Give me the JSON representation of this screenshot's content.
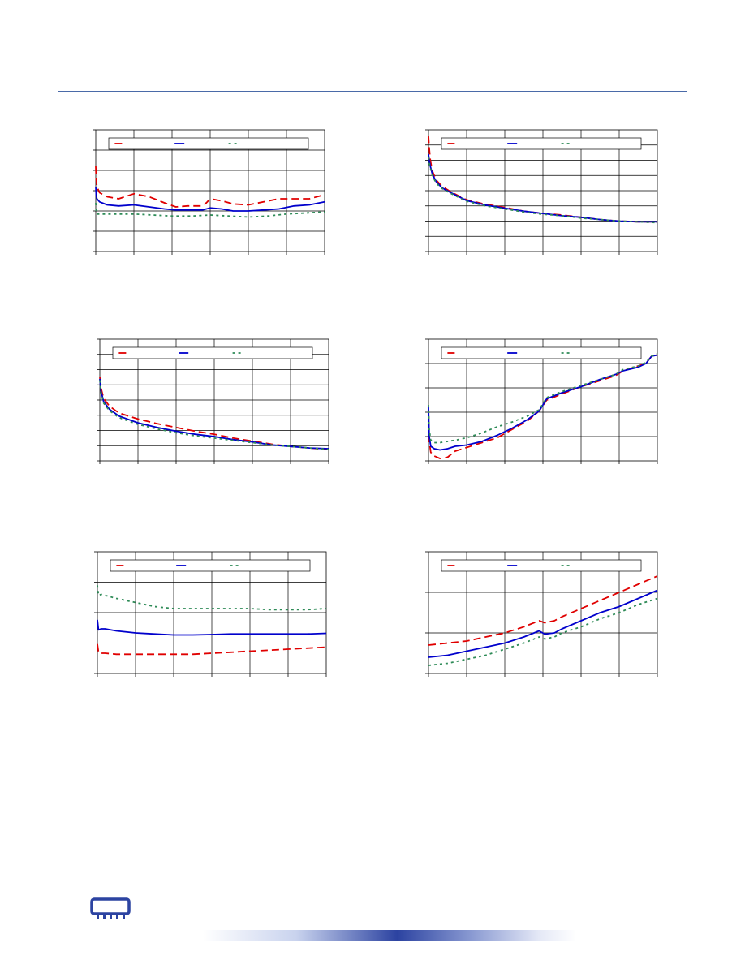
{
  "page": {
    "rule_color": "#4a6aa8",
    "logo_icon": "memory-chip-icon",
    "footer_bar_color": "#2c43a1"
  },
  "colors": {
    "red": "#e00000",
    "blue": "#0000cc",
    "green": "#2e8b57"
  },
  "chart_data": [
    {
      "type": "line",
      "xlim": [
        0,
        6
      ],
      "ylim": [
        0,
        6
      ],
      "xgrid": 6,
      "ygrid": 6,
      "grid": true,
      "legend_placement": "top",
      "series": [
        {
          "color": "red",
          "dash": "dash",
          "x": [
            0,
            0.01,
            0.03,
            0.1,
            0.3,
            0.6,
            1.0,
            1.4,
            1.8,
            2.1,
            2.4,
            2.8,
            2.9,
            3.0,
            3.3,
            3.6,
            4.0,
            4.4,
            4.8,
            5.2,
            5.6,
            6.0
          ],
          "y": [
            4.2,
            3.6,
            3.2,
            2.9,
            2.7,
            2.6,
            2.85,
            2.7,
            2.4,
            2.2,
            2.25,
            2.25,
            2.4,
            2.6,
            2.5,
            2.35,
            2.3,
            2.45,
            2.6,
            2.6,
            2.6,
            2.8
          ]
        },
        {
          "color": "blue",
          "dash": "solid",
          "x": [
            0,
            0.01,
            0.03,
            0.1,
            0.3,
            0.6,
            1.0,
            1.4,
            1.8,
            2.1,
            2.4,
            2.8,
            3.0,
            3.3,
            3.6,
            4.0,
            4.4,
            4.8,
            5.2,
            5.6,
            6.0
          ],
          "y": [
            3.2,
            2.8,
            2.6,
            2.45,
            2.3,
            2.25,
            2.3,
            2.2,
            2.1,
            2.05,
            2.05,
            2.05,
            2.15,
            2.1,
            2.0,
            2.0,
            2.05,
            2.1,
            2.25,
            2.3,
            2.45
          ]
        },
        {
          "color": "green",
          "dash": "dot",
          "x": [
            0,
            0.01,
            0.03,
            0.1,
            0.5,
            1.0,
            1.5,
            2.0,
            2.5,
            3.0,
            3.5,
            4.0,
            4.5,
            5.0,
            5.5,
            6.0
          ],
          "y": [
            2.4,
            1.95,
            1.85,
            1.85,
            1.85,
            1.85,
            1.8,
            1.75,
            1.75,
            1.8,
            1.75,
            1.7,
            1.75,
            1.85,
            1.9,
            1.95
          ]
        }
      ]
    },
    {
      "type": "line",
      "xlim": [
        0,
        6
      ],
      "ylim": [
        0,
        8
      ],
      "xgrid": 6,
      "ygrid": 8,
      "grid": true,
      "legend_placement": "top",
      "series": [
        {
          "color": "red",
          "dash": "dash",
          "x": [
            0,
            0.02,
            0.05,
            0.1,
            0.2,
            0.35,
            0.6,
            1.0,
            1.5,
            2.0,
            2.5,
            3.0,
            3.5,
            4.0,
            4.5,
            5.0,
            5.5,
            6.0
          ],
          "y": [
            7.6,
            6.8,
            6.0,
            5.3,
            4.7,
            4.3,
            3.9,
            3.4,
            3.1,
            2.9,
            2.65,
            2.5,
            2.4,
            2.25,
            2.1,
            2.0,
            1.95,
            1.95
          ]
        },
        {
          "color": "blue",
          "dash": "solid",
          "x": [
            0,
            0.02,
            0.05,
            0.1,
            0.2,
            0.35,
            0.6,
            1.0,
            1.5,
            2.0,
            2.5,
            3.0,
            3.5,
            4.0,
            4.5,
            5.0,
            5.5,
            6.0
          ],
          "y": [
            6.4,
            6.0,
            5.6,
            5.1,
            4.6,
            4.2,
            3.85,
            3.35,
            3.05,
            2.85,
            2.65,
            2.5,
            2.35,
            2.25,
            2.1,
            2.0,
            1.95,
            1.95
          ]
        },
        {
          "color": "green",
          "dash": "dot",
          "x": [
            0,
            0.02,
            0.05,
            0.1,
            0.2,
            0.35,
            0.6,
            1.0,
            1.5,
            2.0,
            2.5,
            3.0,
            3.5,
            4.0,
            4.5,
            5.0,
            5.5,
            6.0
          ],
          "y": [
            6.2,
            5.8,
            5.5,
            5.0,
            4.5,
            4.15,
            3.8,
            3.3,
            3.0,
            2.8,
            2.6,
            2.45,
            2.35,
            2.2,
            2.1,
            2.0,
            1.95,
            1.9
          ]
        }
      ]
    },
    {
      "type": "line",
      "xlim": [
        0,
        6
      ],
      "ylim": [
        0,
        8
      ],
      "xgrid": 6,
      "ygrid": 8,
      "grid": true,
      "legend_placement": "top",
      "series": [
        {
          "color": "red",
          "dash": "dash",
          "x": [
            0,
            0.03,
            0.1,
            0.25,
            0.5,
            1.0,
            1.5,
            2.0,
            2.5,
            3.0,
            3.5,
            4.0,
            4.5,
            5.0,
            5.5,
            6.0
          ],
          "y": [
            5.5,
            4.8,
            4.1,
            3.6,
            3.15,
            2.75,
            2.45,
            2.2,
            1.95,
            1.75,
            1.5,
            1.3,
            1.1,
            0.95,
            0.85,
            0.75
          ]
        },
        {
          "color": "blue",
          "dash": "solid",
          "x": [
            0,
            0.03,
            0.1,
            0.25,
            0.5,
            1.0,
            1.5,
            2.0,
            2.5,
            3.0,
            3.5,
            4.0,
            4.5,
            5.0,
            5.5,
            6.0
          ],
          "y": [
            5.4,
            4.6,
            3.9,
            3.4,
            2.95,
            2.5,
            2.2,
            1.95,
            1.75,
            1.6,
            1.4,
            1.25,
            1.05,
            0.95,
            0.85,
            0.8
          ]
        },
        {
          "color": "green",
          "dash": "dot",
          "x": [
            0,
            0.03,
            0.1,
            0.25,
            0.5,
            1.0,
            1.5,
            2.0,
            2.5,
            3.0,
            3.5,
            4.0,
            4.5,
            5.0,
            5.5,
            6.0
          ],
          "y": [
            5.3,
            4.5,
            3.8,
            3.3,
            2.85,
            2.4,
            2.1,
            1.85,
            1.65,
            1.5,
            1.35,
            1.2,
            1.05,
            0.95,
            0.85,
            0.75
          ]
        }
      ]
    },
    {
      "type": "line",
      "xlim": [
        0,
        6
      ],
      "ylim": [
        0,
        5
      ],
      "xgrid": 6,
      "ygrid": 5,
      "grid": true,
      "legend_placement": "top",
      "series": [
        {
          "color": "red",
          "dash": "dash",
          "x": [
            0,
            0.02,
            0.06,
            0.15,
            0.3,
            0.5,
            0.7,
            1.0,
            1.4,
            1.8,
            2.2,
            2.6,
            2.9,
            3.1,
            3.5,
            4.0,
            4.5,
            4.9,
            5.1,
            5.5,
            5.7,
            5.85,
            6.0
          ],
          "y": [
            2.0,
            0.8,
            0.35,
            0.2,
            0.1,
            0.15,
            0.4,
            0.55,
            0.75,
            0.95,
            1.3,
            1.65,
            2.05,
            2.5,
            2.75,
            3.05,
            3.3,
            3.5,
            3.7,
            3.9,
            4.0,
            4.3,
            4.35
          ]
        },
        {
          "color": "blue",
          "dash": "solid",
          "x": [
            0,
            0.02,
            0.06,
            0.15,
            0.3,
            0.5,
            0.7,
            1.0,
            1.4,
            1.8,
            2.2,
            2.6,
            2.9,
            3.1,
            3.5,
            4.0,
            4.5,
            4.9,
            5.1,
            5.5,
            5.7,
            5.85,
            6.0
          ],
          "y": [
            2.2,
            1.0,
            0.6,
            0.5,
            0.45,
            0.5,
            0.6,
            0.65,
            0.8,
            1.05,
            1.35,
            1.7,
            2.05,
            2.55,
            2.8,
            3.05,
            3.35,
            3.55,
            3.7,
            3.85,
            4.0,
            4.3,
            4.35
          ]
        },
        {
          "color": "green",
          "dash": "dot",
          "x": [
            0,
            0.02,
            0.06,
            0.15,
            0.3,
            0.5,
            0.7,
            1.0,
            1.4,
            1.8,
            2.2,
            2.6,
            2.9,
            3.1,
            3.5,
            4.0,
            4.5,
            4.9,
            5.1,
            5.5,
            5.7,
            5.85,
            6.0
          ],
          "y": [
            2.3,
            1.3,
            0.85,
            0.75,
            0.75,
            0.8,
            0.85,
            0.95,
            1.15,
            1.4,
            1.6,
            1.85,
            2.1,
            2.6,
            2.85,
            3.1,
            3.35,
            3.55,
            3.75,
            3.9,
            4.05,
            4.3,
            4.4
          ]
        }
      ]
    },
    {
      "type": "line",
      "xlim": [
        0,
        6
      ],
      "ylim": [
        0,
        6
      ],
      "xgrid": 6,
      "ygrid": 4,
      "grid": true,
      "legend_placement": "top",
      "series": [
        {
          "color": "red",
          "dash": "dash",
          "x": [
            0,
            0.03,
            0.1,
            0.2,
            0.5,
            1.0,
            1.5,
            2.0,
            2.5,
            3.0,
            3.5,
            4.0,
            4.5,
            5.0,
            5.5,
            6.0
          ],
          "y": [
            1.45,
            1.05,
            1.0,
            1.0,
            0.95,
            0.95,
            0.95,
            0.95,
            0.95,
            1.0,
            1.05,
            1.1,
            1.15,
            1.2,
            1.25,
            1.3
          ]
        },
        {
          "color": "blue",
          "dash": "solid",
          "x": [
            0,
            0.03,
            0.1,
            0.2,
            0.5,
            1.0,
            1.5,
            2.0,
            2.5,
            3.0,
            3.5,
            4.0,
            4.5,
            5.0,
            5.5,
            6.0
          ],
          "y": [
            2.65,
            2.15,
            2.2,
            2.2,
            2.1,
            2.0,
            1.95,
            1.9,
            1.9,
            1.92,
            1.95,
            1.95,
            1.95,
            1.95,
            1.95,
            1.98
          ]
        },
        {
          "color": "green",
          "dash": "dot",
          "x": [
            0,
            0.03,
            0.1,
            0.2,
            0.5,
            1.0,
            1.5,
            2.0,
            2.5,
            3.0,
            3.5,
            4.0,
            4.5,
            5.0,
            5.5,
            6.0
          ],
          "y": [
            4.35,
            3.85,
            3.9,
            3.85,
            3.7,
            3.5,
            3.3,
            3.2,
            3.2,
            3.2,
            3.2,
            3.2,
            3.15,
            3.15,
            3.15,
            3.2
          ]
        }
      ]
    },
    {
      "type": "line",
      "xlim": [
        0,
        6
      ],
      "ylim": [
        0,
        3
      ],
      "xgrid": 6,
      "ygrid": 3,
      "grid": true,
      "legend_placement": "top",
      "series": [
        {
          "color": "red",
          "dash": "dash",
          "x": [
            0,
            0.5,
            1.0,
            1.5,
            2.0,
            2.5,
            2.9,
            3.05,
            3.3,
            3.5,
            4.0,
            4.5,
            5.0,
            5.5,
            6.0
          ],
          "y": [
            0.7,
            0.75,
            0.8,
            0.9,
            1.0,
            1.15,
            1.3,
            1.25,
            1.3,
            1.4,
            1.6,
            1.8,
            2.0,
            2.2,
            2.4
          ]
        },
        {
          "color": "blue",
          "dash": "solid",
          "x": [
            0,
            0.5,
            1.0,
            1.5,
            2.0,
            2.5,
            2.9,
            3.05,
            3.3,
            3.5,
            4.0,
            4.5,
            5.0,
            5.5,
            6.0
          ],
          "y": [
            0.4,
            0.45,
            0.55,
            0.65,
            0.75,
            0.9,
            1.05,
            0.97,
            1.0,
            1.1,
            1.3,
            1.5,
            1.65,
            1.85,
            2.05
          ]
        },
        {
          "color": "green",
          "dash": "dot",
          "x": [
            0,
            0.5,
            1.0,
            1.5,
            2.0,
            2.5,
            2.9,
            3.05,
            3.3,
            3.5,
            4.0,
            4.5,
            5.0,
            5.5,
            6.0
          ],
          "y": [
            0.2,
            0.25,
            0.35,
            0.45,
            0.6,
            0.75,
            0.9,
            0.85,
            0.9,
            1.0,
            1.15,
            1.35,
            1.5,
            1.7,
            1.85
          ]
        }
      ]
    }
  ]
}
